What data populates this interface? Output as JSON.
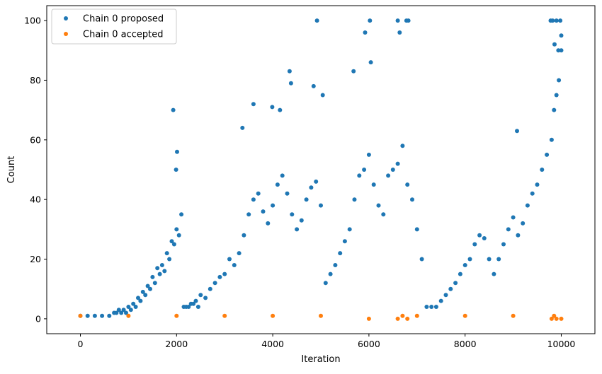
{
  "chart_data": {
    "type": "scatter",
    "title": "",
    "xlabel": "Iteration",
    "ylabel": "Count",
    "xlim": [
      -700,
      10700
    ],
    "ylim": [
      -5,
      105
    ],
    "xticks": [
      0,
      2000,
      4000,
      6000,
      8000,
      10000
    ],
    "yticks": [
      0,
      20,
      40,
      60,
      80,
      100
    ],
    "grid": false,
    "legend_position": "top-left",
    "series": [
      {
        "name": "Chain 0 proposed",
        "color": "#1f77b4",
        "x": [
          0,
          150,
          300,
          450,
          600,
          700,
          750,
          800,
          850,
          900,
          950,
          1000,
          1050,
          1100,
          1150,
          1200,
          1250,
          1300,
          1350,
          1400,
          1450,
          1500,
          1550,
          1600,
          1650,
          1700,
          1750,
          1800,
          1850,
          1900,
          1950,
          2000,
          2050,
          2100,
          2150,
          2200,
          2250,
          2300,
          2350,
          2400,
          2450,
          2500,
          2600,
          2700,
          2800,
          2900,
          3000,
          3100,
          3200,
          3300,
          3400,
          3500,
          3600,
          3700,
          3800,
          3900,
          4000,
          4100,
          4200,
          4300,
          4400,
          4500,
          4600,
          4700,
          4800,
          4900,
          5000,
          5100,
          5200,
          5300,
          5400,
          5500,
          5600,
          5700,
          5800,
          5900,
          6000,
          6100,
          6200,
          6300,
          6400,
          6500,
          6600,
          6700,
          6800,
          6900,
          7000,
          7100,
          7200,
          7300,
          7400,
          7500,
          7600,
          7700,
          7800,
          7900,
          8000,
          8100,
          8200,
          8300,
          8400,
          8500,
          8600,
          8700,
          8800,
          8900,
          9000,
          9100,
          9200,
          9300,
          9400,
          9500,
          9600,
          9700,
          9800,
          9850,
          9900,
          9950,
          10000,
          1930,
          1990,
          2010,
          3370,
          3600,
          3990,
          4150,
          4350,
          4380,
          4850,
          4920,
          5040,
          5680,
          5920,
          6020,
          6040,
          6600,
          6640,
          6780,
          6820,
          9080,
          9780,
          9820,
          9860,
          9900,
          9940,
          9980,
          10000
        ],
        "y": [
          1,
          1,
          1,
          1,
          1,
          2,
          2,
          3,
          2,
          3,
          2,
          4,
          3,
          5,
          4,
          7,
          6,
          9,
          8,
          11,
          10,
          14,
          12,
          17,
          15,
          18,
          16,
          22,
          20,
          26,
          25,
          30,
          28,
          35,
          4,
          4,
          4,
          5,
          5,
          6,
          4,
          8,
          7,
          10,
          12,
          14,
          15,
          20,
          18,
          22,
          28,
          35,
          40,
          42,
          36,
          32,
          38,
          45,
          48,
          42,
          35,
          30,
          33,
          40,
          44,
          46,
          38,
          12,
          15,
          18,
          22,
          26,
          30,
          40,
          48,
          50,
          55,
          45,
          38,
          35,
          48,
          50,
          52,
          58,
          45,
          40,
          30,
          20,
          4,
          4,
          4,
          6,
          8,
          10,
          12,
          15,
          18,
          20,
          25,
          28,
          27,
          20,
          15,
          20,
          25,
          30,
          34,
          28,
          32,
          38,
          42,
          45,
          50,
          55,
          60,
          70,
          75,
          80,
          90,
          70,
          50,
          56,
          64,
          72,
          71,
          70,
          83,
          79,
          78,
          100,
          75,
          83,
          96,
          100,
          86,
          100,
          96,
          100,
          100,
          63,
          100,
          100,
          92,
          100,
          90,
          100,
          95
        ]
      },
      {
        "name": "Chain 0 accepted",
        "color": "#ff7f0e",
        "x": [
          0,
          1000,
          2000,
          3000,
          4000,
          5000,
          6000,
          6600,
          6700,
          6800,
          7000,
          8000,
          9000,
          9800,
          9850,
          9900,
          10000
        ],
        "y": [
          1,
          1,
          1,
          1,
          1,
          1,
          0,
          0,
          1,
          0,
          1,
          1,
          1,
          0,
          1,
          0,
          0
        ]
      }
    ]
  }
}
